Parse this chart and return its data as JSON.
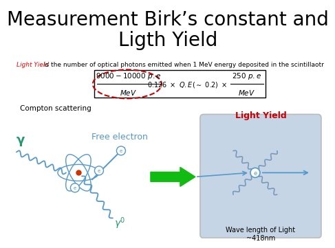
{
  "title_line1": "Measurement Birk’s constant and",
  "title_line2": "Ligth Yield",
  "title_fontsize": 20,
  "subtitle_red": "Light Yield",
  "subtitle_black": " is the number of optical photons emitted when 1 MeV energy deposited in the scintillaotr",
  "subtitle_fontsize": 6.5,
  "formula_fontsize": 7.5,
  "compton_label": "Compton scattering",
  "free_electron_label": "Free electron",
  "free_electron_color": "#5599cc",
  "light_yield_label": "Light Yield",
  "light_yield_color": "#cc0000",
  "wavelength_label": "Wave length of Light\n~418nm",
  "gamma_color": "#229966",
  "bg_color": "#ffffff",
  "box_bg_color": "#c5d5e5",
  "box_border_color": "#bbbbbb",
  "arrow_color": "#11bb11",
  "electron_color": "#5599cc",
  "photon_wave_color": "#7799bb",
  "dashed_ellipse_color": "#cc0000"
}
